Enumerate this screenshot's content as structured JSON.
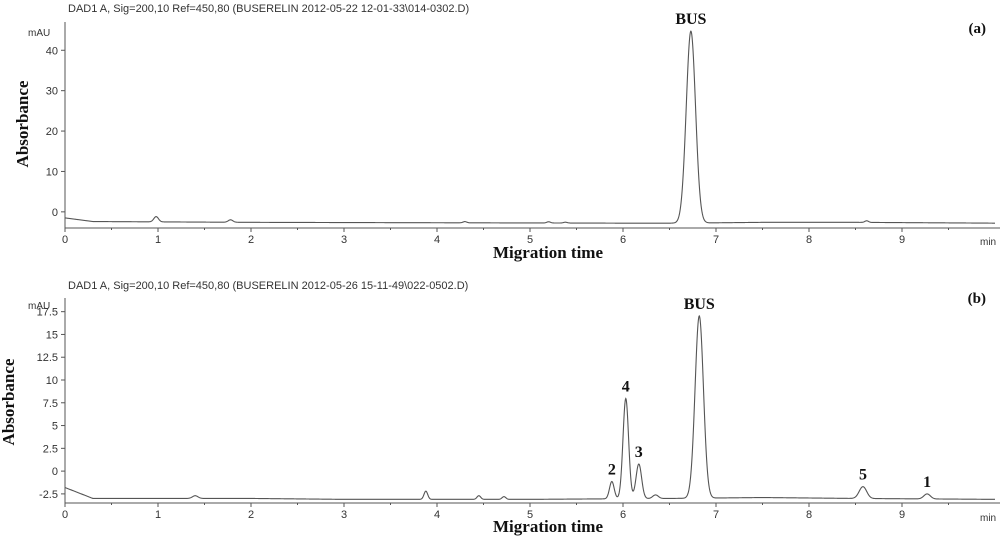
{
  "chart_data": [
    {
      "type": "line",
      "panel_label": "(a)",
      "header": "DAD1 A, Sig=200,10 Ref=450,80 (BUSERELIN 2012-05-22 12-01-33\\014-0302.D)",
      "y_unit": "mAU",
      "x_unit": "min",
      "xlabel": "Migration time",
      "ylabel": "Absorbance",
      "xlim": [
        0,
        10
      ],
      "ylim": [
        -4,
        47
      ],
      "x_ticks": [
        0,
        1,
        2,
        3,
        4,
        5,
        6,
        7,
        8,
        9
      ],
      "y_ticks": [
        0,
        10,
        20,
        30,
        40
      ],
      "y_tick_labels": [
        "0",
        "10",
        "20",
        "30",
        "40"
      ],
      "baseline": [
        [
          0,
          -1.5
        ],
        [
          0.3,
          -2.4
        ],
        [
          2.0,
          -2.6
        ],
        [
          4.0,
          -2.7
        ],
        [
          6.0,
          -2.8
        ],
        [
          6.6,
          -2.8
        ],
        [
          7.5,
          -2.6
        ],
        [
          8.5,
          -2.6
        ],
        [
          10,
          -2.8
        ]
      ],
      "peaks": [
        {
          "label": "BUS",
          "x": 6.73,
          "height": 47.5,
          "width": 0.05
        },
        {
          "label": "",
          "x": 0.98,
          "height": 1.3,
          "width": 0.025
        },
        {
          "label": "",
          "x": 1.78,
          "height": 0.6,
          "width": 0.025
        },
        {
          "label": "",
          "x": 4.3,
          "height": 0.3,
          "width": 0.02
        },
        {
          "label": "",
          "x": 5.2,
          "height": 0.3,
          "width": 0.02
        },
        {
          "label": "",
          "x": 5.38,
          "height": 0.2,
          "width": 0.02
        },
        {
          "label": "",
          "x": 8.62,
          "height": 0.4,
          "width": 0.02
        }
      ]
    },
    {
      "type": "line",
      "panel_label": "(b)",
      "header": "DAD1 A, Sig=200,10 Ref=450,80 (BUSERELIN 2012-05-26 15-11-49\\022-0502.D)",
      "y_unit": "mAU",
      "x_unit": "min",
      "xlabel": "Migration time",
      "ylabel": "Absorbance",
      "xlim": [
        0,
        10
      ],
      "ylim": [
        -3.5,
        19
      ],
      "x_ticks": [
        0,
        1,
        2,
        3,
        4,
        5,
        6,
        7,
        8,
        9
      ],
      "y_ticks": [
        -2.5,
        0,
        2.5,
        5,
        7.5,
        10,
        12.5,
        15,
        17.5
      ],
      "y_tick_labels": [
        "-2.5",
        "0",
        "2.5",
        "5",
        "7.5",
        "10",
        "12.5",
        "15",
        "17.5"
      ],
      "baseline": [
        [
          0,
          -1.8
        ],
        [
          0.3,
          -3.0
        ],
        [
          2.0,
          -3.0
        ],
        [
          3.0,
          -3.1
        ],
        [
          5.0,
          -3.1
        ],
        [
          6.5,
          -3.0
        ],
        [
          7.5,
          -2.9
        ],
        [
          8.5,
          -3.0
        ],
        [
          10,
          -3.1
        ]
      ],
      "peaks": [
        {
          "label": "2",
          "x": 5.88,
          "height": 1.9,
          "width": 0.025
        },
        {
          "label": "4",
          "x": 6.03,
          "height": 11.0,
          "width": 0.03
        },
        {
          "label": "3",
          "x": 6.17,
          "height": 3.8,
          "width": 0.03
        },
        {
          "label": "BUS",
          "x": 6.82,
          "height": 20.0,
          "width": 0.045
        },
        {
          "label": "5",
          "x": 8.58,
          "height": 1.3,
          "width": 0.04
        },
        {
          "label": "1",
          "x": 9.27,
          "height": 0.55,
          "width": 0.035
        },
        {
          "label": "",
          "x": 1.4,
          "height": 0.3,
          "width": 0.03
        },
        {
          "label": "",
          "x": 3.88,
          "height": 0.9,
          "width": 0.02
        },
        {
          "label": "",
          "x": 4.45,
          "height": 0.4,
          "width": 0.02
        },
        {
          "label": "",
          "x": 4.72,
          "height": 0.3,
          "width": 0.02
        },
        {
          "label": "",
          "x": 6.35,
          "height": 0.4,
          "width": 0.03
        }
      ]
    }
  ]
}
